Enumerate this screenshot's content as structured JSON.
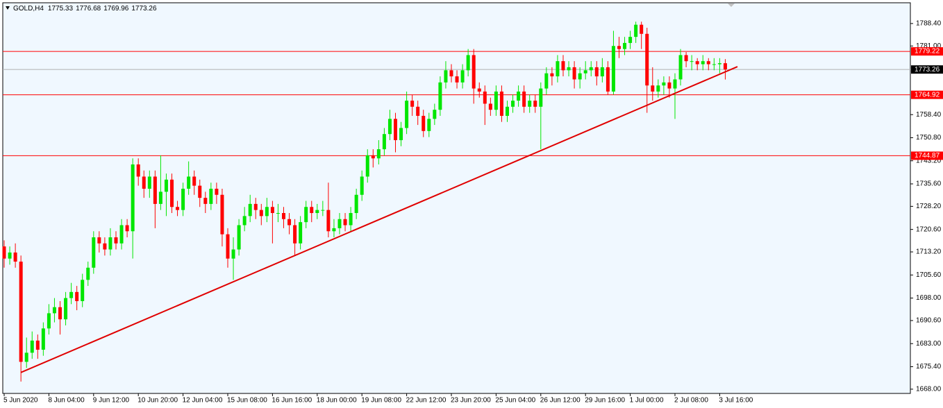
{
  "chart_data": {
    "type": "candlestick",
    "title": "GOLD,H4",
    "categories": [
      "5 Jun 2020",
      null,
      null,
      null,
      null,
      null,
      null,
      null,
      "8 Jun 04:00",
      null,
      null,
      null,
      null,
      null,
      null,
      null,
      "9 Jun 12:00",
      null,
      null,
      null,
      null,
      null,
      null,
      null,
      "10 Jun 20:00",
      null,
      null,
      null,
      null,
      null,
      null,
      null,
      "12 Jun 04:00",
      null,
      null,
      null,
      null,
      null,
      null,
      null,
      "15 Jun 08:00",
      null,
      null,
      null,
      null,
      null,
      null,
      null,
      "16 Jun 16:00",
      null,
      null,
      null,
      null,
      null,
      null,
      null,
      "18 Jun 00:00",
      null,
      null,
      null,
      null,
      null,
      null,
      null,
      "19 Jun 08:00",
      null,
      null,
      null,
      null,
      null,
      null,
      null,
      "22 Jun 12:00",
      null,
      null,
      null,
      null,
      null,
      null,
      null,
      "23 Jun 20:00",
      null,
      null,
      null,
      null,
      null,
      null,
      null,
      "25 Jun 04:00",
      null,
      null,
      null,
      null,
      null,
      null,
      null,
      "26 Jun 12:00",
      null,
      null,
      null,
      null,
      null,
      null,
      null,
      "29 Jun 16:00",
      null,
      null,
      null,
      null,
      null,
      null,
      null,
      "1 Jul 00:00",
      null,
      null,
      null,
      null,
      null,
      null,
      null,
      "2 Jul 08:00",
      null,
      null,
      null,
      null,
      null,
      null,
      null,
      "3 Jul 16:00",
      null
    ],
    "open": [
      1715,
      1711,
      1713,
      1710,
      1677,
      1680,
      1684,
      1681,
      1688,
      1693,
      1695,
      1691,
      1698,
      1700,
      1697,
      1704,
      1708,
      1718,
      1716,
      1714,
      1718,
      1716,
      1722,
      1720,
      1742,
      1738,
      1734,
      1738,
      1729,
      1733,
      1737,
      1728,
      1727,
      1734,
      1738,
      1735,
      1731,
      1729,
      1734,
      1732,
      1719,
      1711,
      1714,
      1722,
      1725,
      1729,
      1727,
      1725,
      1728,
      1726,
      1726,
      1724,
      1722,
      1716,
      1723,
      1728,
      1726,
      1727,
      1727,
      1720,
      1721,
      1724,
      1722,
      1726,
      1732,
      1738,
      1745,
      1744,
      1747,
      1752,
      1757,
      1750,
      1754,
      1763,
      1761,
      1758,
      1753,
      1757,
      1760,
      1769,
      1773,
      1771,
      1769,
      1773,
      1778,
      1767,
      1766,
      1762,
      1760,
      1766,
      1758,
      1761,
      1763,
      1766,
      1761,
      1763,
      1761,
      1767,
      1772,
      1771,
      1776,
      1773,
      1774,
      1770,
      1772,
      1773,
      1774,
      1771,
      1774,
      1766,
      1781,
      1780,
      1782,
      1784,
      1788,
      1785,
      1768,
      1766,
      1768,
      1769,
      1767,
      1770,
      1778,
      1776,
      1776,
      1775,
      1776,
      1775,
      1775,
      1775.33
    ],
    "high": [
      1717,
      1715,
      1716,
      1712,
      1685,
      1687,
      1686,
      1690,
      1696,
      1698,
      1697,
      1700,
      1703,
      1702,
      1706,
      1710,
      1720,
      1720,
      1718,
      1721,
      1720,
      1724,
      1724,
      1744,
      1744,
      1740,
      1740,
      1740,
      1745,
      1739,
      1739,
      1730,
      1736,
      1743,
      1740,
      1737,
      1733,
      1736,
      1736,
      1734,
      1721,
      1718,
      1724,
      1728,
      1732,
      1731,
      1729,
      1731,
      1730,
      1729,
      1728,
      1726,
      1724,
      1725,
      1730,
      1730,
      1729,
      1730,
      1736,
      1724,
      1726,
      1726,
      1728,
      1734,
      1740,
      1747,
      1747,
      1750,
      1754,
      1760,
      1759,
      1756,
      1766,
      1765,
      1763,
      1760,
      1759,
      1762,
      1771,
      1776,
      1775,
      1773,
      1775,
      1780,
      1780,
      1769,
      1768,
      1764,
      1768,
      1768,
      1763,
      1765,
      1768,
      1768,
      1765,
      1765,
      1769,
      1774,
      1774,
      1778,
      1778,
      1776,
      1776,
      1774,
      1776,
      1776,
      1776,
      1777,
      1776,
      1786,
      1784,
      1784,
      1786,
      1789,
      1789,
      1787,
      1774,
      1770,
      1771,
      1771,
      1772,
      1780,
      1779,
      1778,
      1777,
      1778,
      1777,
      1777,
      1777,
      1776.68
    ],
    "low": [
      1708,
      1709,
      1708,
      1670.5,
      1675,
      1678,
      1678,
      1679,
      1686,
      1690,
      1686,
      1689,
      1696,
      1694,
      1695,
      1702,
      1706,
      1713,
      1712,
      1712,
      1714,
      1714,
      1718,
      1711,
      1735,
      1731,
      1731,
      1721,
      1727,
      1725,
      1726,
      1725,
      1725,
      1732,
      1732,
      1728,
      1726,
      1727,
      1729,
      1715,
      1708,
      1704,
      1712,
      1720,
      1723,
      1724,
      1722,
      1723,
      1716,
      1723,
      1721,
      1719,
      1712,
      1714,
      1721,
      1723,
      1724,
      1725,
      1718,
      1718,
      1719,
      1720,
      1720,
      1724,
      1730,
      1736,
      1741,
      1742,
      1745,
      1750,
      1746,
      1748,
      1752,
      1758,
      1755,
      1751,
      1751,
      1755,
      1758,
      1767,
      1769,
      1767,
      1767,
      1771,
      1762,
      1764,
      1755,
      1758,
      1758,
      1756,
      1756,
      1759,
      1761,
      1759,
      1759,
      1759,
      1747,
      1765,
      1768,
      1769,
      1771,
      1771,
      1767,
      1767,
      1770,
      1771,
      1768,
      1769,
      1765,
      1765,
      1777,
      1778,
      1780,
      1782,
      1780,
      1759,
      1763,
      1764,
      1765,
      1764,
      1757,
      1768,
      1774,
      1773,
      1773,
      1773,
      1773,
      1773,
      1772,
      1769.96
    ],
    "close": [
      1711,
      1713,
      1710,
      1677,
      1680,
      1684,
      1681,
      1688,
      1693,
      1695,
      1691,
      1698,
      1700,
      1697,
      1704,
      1708,
      1718,
      1716,
      1714,
      1718,
      1716,
      1722,
      1720,
      1742,
      1738,
      1734,
      1738,
      1729,
      1733,
      1737,
      1728,
      1727,
      1734,
      1738,
      1735,
      1731,
      1729,
      1734,
      1732,
      1719,
      1711,
      1714,
      1722,
      1725,
      1729,
      1727,
      1725,
      1728,
      1726,
      1726,
      1724,
      1722,
      1716,
      1723,
      1728,
      1726,
      1727,
      1727,
      1720,
      1721,
      1724,
      1722,
      1726,
      1732,
      1738,
      1745,
      1744,
      1747,
      1752,
      1757,
      1750,
      1754,
      1763,
      1761,
      1758,
      1753,
      1757,
      1760,
      1769,
      1773,
      1771,
      1769,
      1773,
      1778,
      1767,
      1766,
      1762,
      1760,
      1766,
      1758,
      1761,
      1763,
      1766,
      1761,
      1763,
      1761,
      1767,
      1772,
      1771,
      1776,
      1773,
      1774,
      1770,
      1772,
      1773,
      1774,
      1771,
      1774,
      1766,
      1781,
      1780,
      1782,
      1784,
      1788,
      1785,
      1768,
      1766,
      1768,
      1769,
      1767,
      1770,
      1778,
      1776,
      1776,
      1775,
      1776,
      1775,
      1775,
      1775.33,
      1773.26
    ],
    "up_color": "#00e600",
    "down_color": "#ff0000",
    "ylim": [
      1666.6,
      1795.0
    ],
    "yticks": [
      {
        "value": 1788.4,
        "label": "1788.40"
      },
      {
        "value": 1781,
        "label": "1781.00"
      },
      {
        "value": 1758.4,
        "label": "1758.40"
      },
      {
        "value": 1750.8,
        "label": "1750.80"
      },
      {
        "value": 1743.2,
        "label": "1743.20"
      },
      {
        "value": 1735.6,
        "label": "1735.60"
      },
      {
        "value": 1728.2,
        "label": "1728.20"
      },
      {
        "value": 1720.6,
        "label": "1720.60"
      },
      {
        "value": 1713.2,
        "label": "1713.20"
      },
      {
        "value": 1705.6,
        "label": "1705.60"
      },
      {
        "value": 1698,
        "label": "1698.00"
      },
      {
        "value": 1690.6,
        "label": "1690.60"
      },
      {
        "value": 1683,
        "label": "1683.00"
      },
      {
        "value": 1675.4,
        "label": "1675.40"
      },
      {
        "value": 1668,
        "label": "1668.00"
      }
    ],
    "levels": [
      {
        "value": 1779.22,
        "color": "#ff0000"
      },
      {
        "value": 1764.92,
        "color": "#ff0000"
      },
      {
        "value": 1744.87,
        "color": "#ff0000"
      }
    ],
    "trendline": {
      "start": 1673.5,
      "end": 1774.2,
      "color": "#e00000"
    },
    "grid": false
  }
}
